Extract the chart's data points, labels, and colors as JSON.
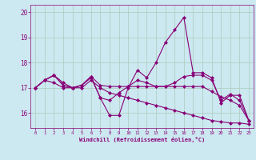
{
  "xlabel": "Windchill (Refroidissement éolien,°C)",
  "background_color": "#cce8f0",
  "grid_color": "#aaccbb",
  "line_color": "#880077",
  "xlim": [
    -0.5,
    23.5
  ],
  "ylim": [
    15.4,
    20.3
  ],
  "yticks": [
    16,
    17,
    18,
    19,
    20
  ],
  "xticks": [
    0,
    1,
    2,
    3,
    4,
    5,
    6,
    7,
    8,
    9,
    10,
    11,
    12,
    13,
    14,
    15,
    16,
    17,
    18,
    19,
    20,
    21,
    22,
    23
  ],
  "series": [
    [
      17.0,
      17.3,
      17.5,
      17.1,
      17.0,
      17.1,
      17.4,
      16.6,
      15.9,
      15.9,
      17.0,
      17.7,
      17.4,
      18.0,
      18.8,
      19.3,
      19.8,
      17.6,
      17.6,
      17.4,
      16.4,
      16.7,
      16.7,
      15.7
    ],
    [
      17.0,
      17.3,
      17.5,
      17.2,
      17.0,
      17.1,
      17.45,
      17.1,
      17.05,
      17.05,
      17.05,
      17.05,
      17.05,
      17.05,
      17.05,
      17.05,
      17.05,
      17.05,
      17.05,
      16.85,
      16.65,
      16.5,
      16.3,
      15.7
    ],
    [
      17.0,
      17.3,
      17.5,
      17.1,
      17.0,
      17.1,
      17.45,
      16.6,
      16.5,
      16.8,
      17.05,
      17.3,
      17.2,
      17.05,
      17.05,
      17.2,
      17.45,
      17.5,
      17.5,
      17.3,
      16.5,
      16.75,
      16.5,
      15.7
    ],
    [
      17.0,
      17.3,
      17.2,
      17.0,
      17.0,
      17.0,
      17.3,
      17.0,
      16.8,
      16.7,
      16.6,
      16.5,
      16.4,
      16.3,
      16.2,
      16.1,
      16.0,
      15.9,
      15.8,
      15.7,
      15.65,
      15.6,
      15.6,
      15.55
    ]
  ]
}
